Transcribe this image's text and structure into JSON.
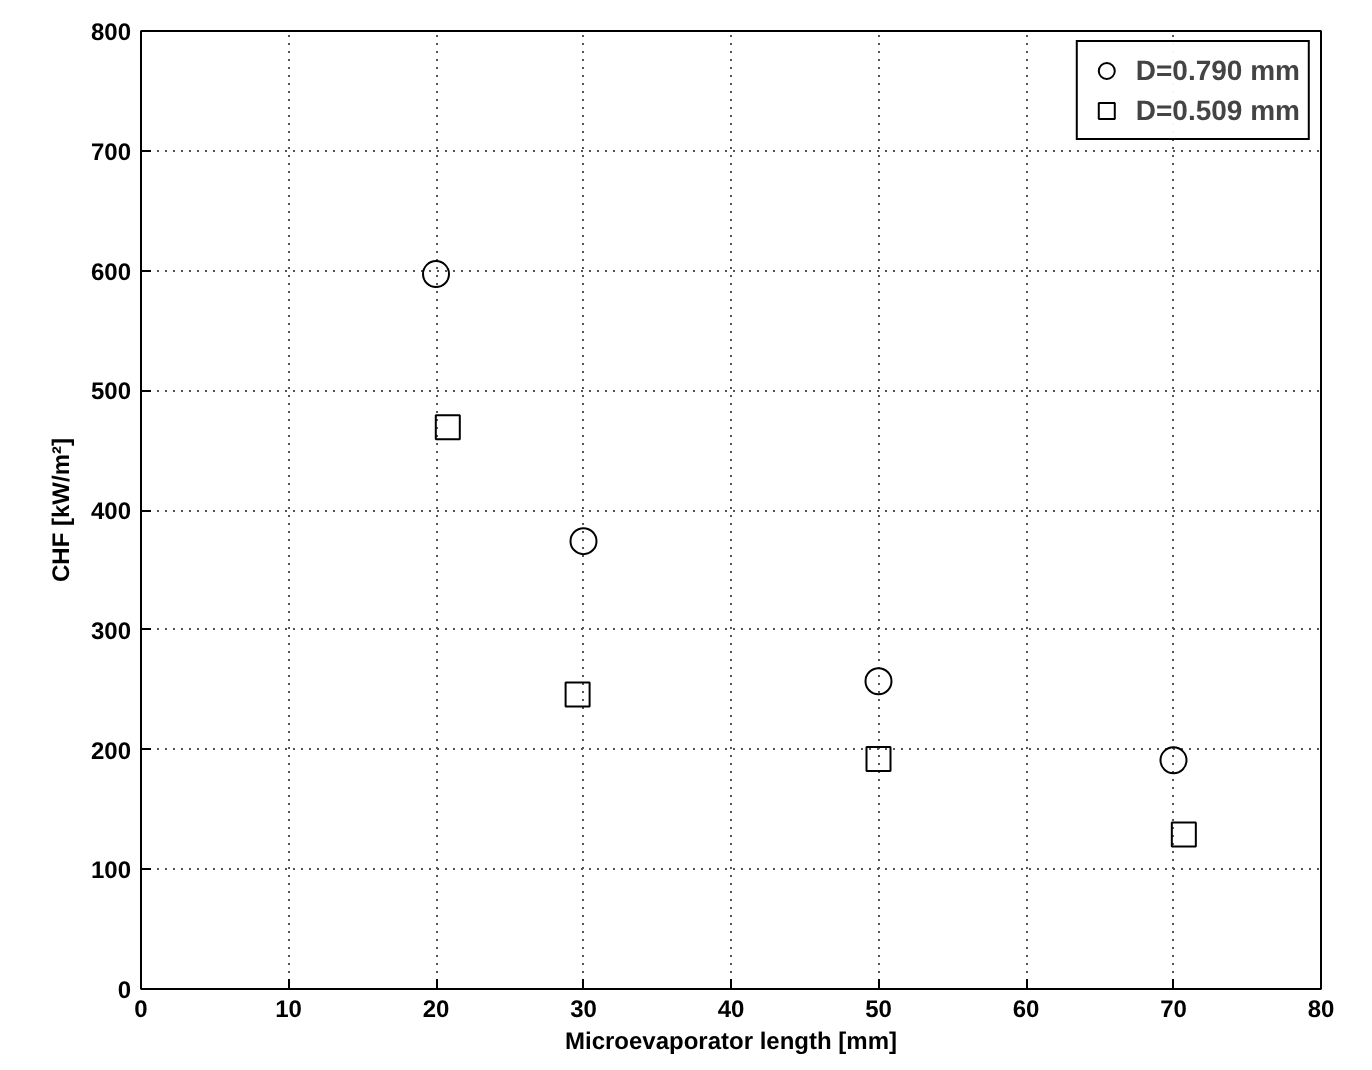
{
  "chart_data": {
    "type": "scatter",
    "xlabel": "Microevaporator length [mm]",
    "ylabel": "CHF [kW/m²]",
    "xlim": [
      0,
      80
    ],
    "ylim": [
      0,
      800
    ],
    "xticks": [
      0,
      10,
      20,
      30,
      40,
      50,
      60,
      70,
      80
    ],
    "yticks": [
      0,
      100,
      200,
      300,
      400,
      500,
      600,
      700,
      800
    ],
    "grid": true,
    "legend": "top right",
    "series": [
      {
        "name": "D=0.790 mm",
        "color": "#000000",
        "marker": "circle",
        "x": [
          20,
          30,
          50,
          70
        ],
        "values": [
          597,
          374,
          257,
          191
        ]
      },
      {
        "name": "D=0.509 mm",
        "color": "#000000",
        "marker": "square",
        "x": [
          20.8,
          29.6,
          50,
          70.7
        ],
        "values": [
          469,
          246,
          192,
          129
        ]
      }
    ]
  }
}
